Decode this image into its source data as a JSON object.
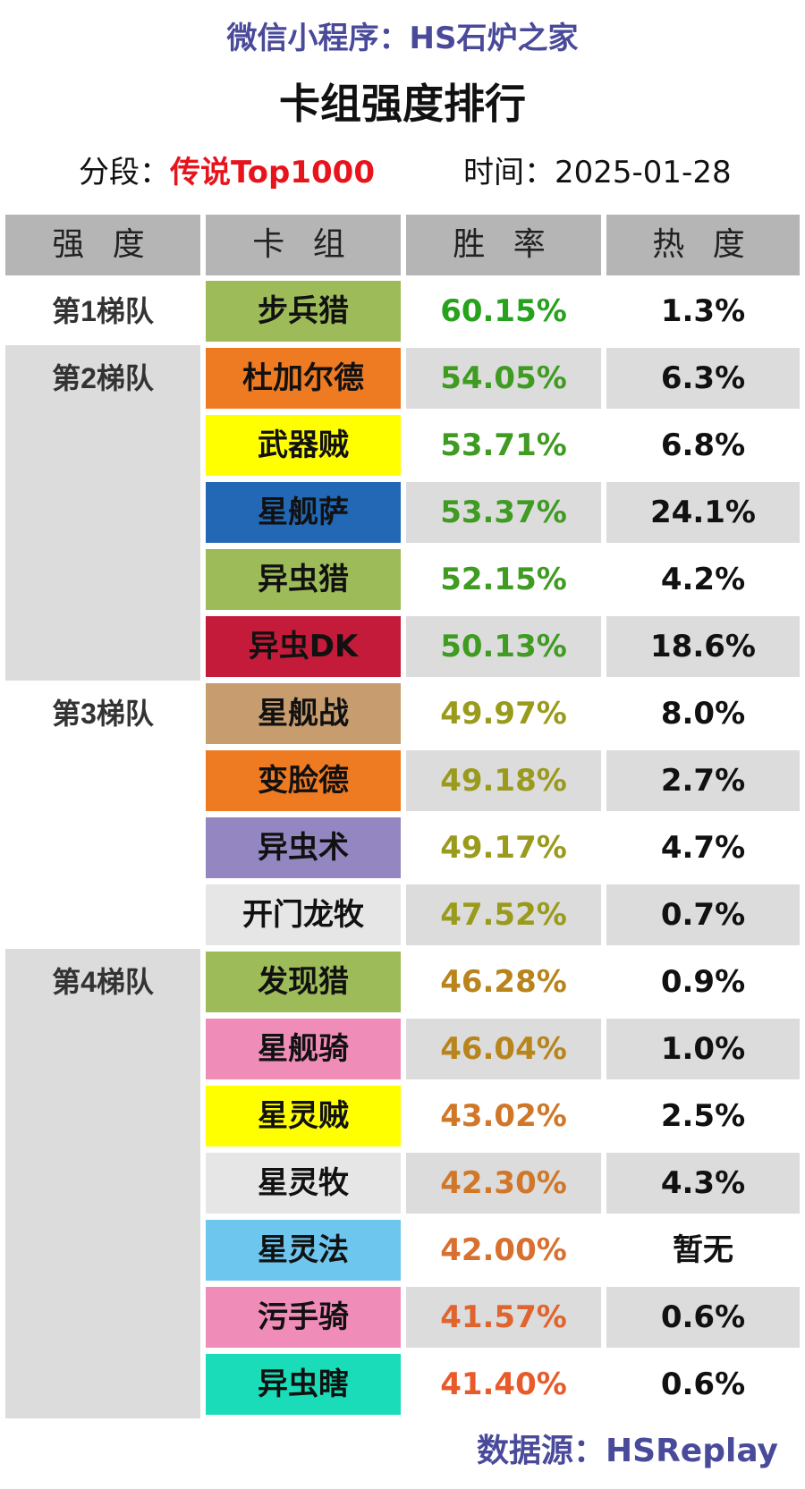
{
  "subtitle": "微信小程序：HS石炉之家",
  "title": "卡组强度排行",
  "segment": {
    "label": "分段：",
    "value": "传说Top1000"
  },
  "time": {
    "label": "时间：",
    "value": "2025-01-28"
  },
  "headers": [
    "强 度",
    "卡 组",
    "胜 率",
    "热 度"
  ],
  "tiers": [
    {
      "label": "第1梯队",
      "start": 0,
      "count": 1,
      "shaded": false
    },
    {
      "label": "第2梯队",
      "start": 1,
      "count": 5,
      "shaded": true
    },
    {
      "label": "第3梯队",
      "start": 6,
      "count": 4,
      "shaded": false
    },
    {
      "label": "第4梯队",
      "start": 10,
      "count": 7,
      "shaded": true
    }
  ],
  "decks": [
    {
      "name": "步兵猎",
      "winrate": "60.15%",
      "popularity": "1.3%",
      "deck_color": "#9dbb58",
      "winrate_color": "#26a21c"
    },
    {
      "name": "杜加尔德",
      "winrate": "54.05%",
      "popularity": "6.3%",
      "deck_color": "#ee7a22",
      "winrate_color": "#3f9b22"
    },
    {
      "name": "武器贼",
      "winrate": "53.71%",
      "popularity": "6.8%",
      "deck_color": "#ffff00",
      "winrate_color": "#3f9b22"
    },
    {
      "name": "星舰萨",
      "winrate": "53.37%",
      "popularity": "24.1%",
      "deck_color": "#2268b4",
      "winrate_color": "#3f9b22"
    },
    {
      "name": "异虫猎",
      "winrate": "52.15%",
      "popularity": "4.2%",
      "deck_color": "#9dbb58",
      "winrate_color": "#3f9b22"
    },
    {
      "name": "异虫DK",
      "winrate": "50.13%",
      "popularity": "18.6%",
      "deck_color": "#c41b3a",
      "winrate_color": "#3f9b22"
    },
    {
      "name": "星舰战",
      "winrate": "49.97%",
      "popularity": "8.0%",
      "deck_color": "#c79c6e",
      "winrate_color": "#9a9a1c"
    },
    {
      "name": "变脸德",
      "winrate": "49.18%",
      "popularity": "2.7%",
      "deck_color": "#ee7a22",
      "winrate_color": "#9a9a1c"
    },
    {
      "name": "异虫术",
      "winrate": "49.17%",
      "popularity": "4.7%",
      "deck_color": "#9486c0",
      "winrate_color": "#9a9a1c"
    },
    {
      "name": "开门龙牧",
      "winrate": "47.52%",
      "popularity": "0.7%",
      "deck_color": "#e6e6e6",
      "winrate_color": "#9a9a1c"
    },
    {
      "name": "发现猎",
      "winrate": "46.28%",
      "popularity": "0.9%",
      "deck_color": "#9dbb58",
      "winrate_color": "#b8841c"
    },
    {
      "name": "星舰骑",
      "winrate": "46.04%",
      "popularity": "1.0%",
      "deck_color": "#f08cb8",
      "winrate_color": "#b8841c"
    },
    {
      "name": "星灵贼",
      "winrate": "43.02%",
      "popularity": "2.5%",
      "deck_color": "#ffff00",
      "winrate_color": "#d0772a"
    },
    {
      "name": "星灵牧",
      "winrate": "42.30%",
      "popularity": "4.3%",
      "deck_color": "#e6e6e6",
      "winrate_color": "#d0772a"
    },
    {
      "name": "星灵法",
      "winrate": "42.00%",
      "popularity": "暂无",
      "deck_color": "#6cc6ee",
      "winrate_color": "#d87030"
    },
    {
      "name": "污手骑",
      "winrate": "41.57%",
      "popularity": "0.6%",
      "deck_color": "#f08cb8",
      "winrate_color": "#e0642e"
    },
    {
      "name": "异虫瞎",
      "winrate": "41.40%",
      "popularity": "0.6%",
      "deck_color": "#1adcb8",
      "winrate_color": "#e85a2a"
    }
  ],
  "footer": "数据源：HSReplay"
}
